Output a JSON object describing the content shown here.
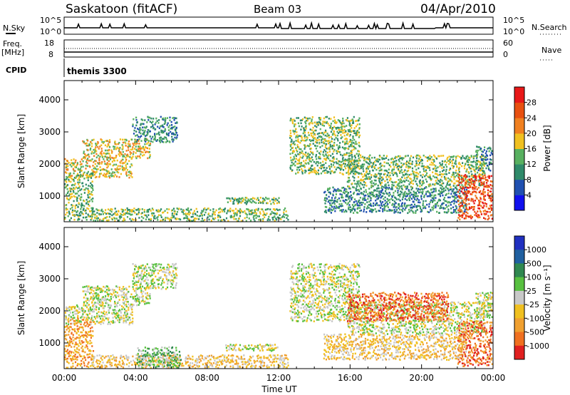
{
  "header": {
    "station": "Saskatoon (fitACF)",
    "beam": "Beam 03",
    "date": "04/Apr/2010"
  },
  "top_panel": {
    "left_label": "N.Sky",
    "right_label": "N.Search",
    "left_ticks": [
      "10^5",
      "10^0"
    ],
    "right_ticks": [
      "10^5",
      "10^0"
    ]
  },
  "freq_panel": {
    "label_line1": "Freq.",
    "label_line2": "[MHz]",
    "left_ticks": [
      "18",
      "8"
    ],
    "right_ticks": [
      "60",
      "0"
    ],
    "right_label": "Nave"
  },
  "cpid": {
    "label": "CPID",
    "value": "themis 3300"
  },
  "chart_data": [
    {
      "type": "heatmap",
      "name": "power",
      "xlabel": "",
      "ylabel": "Slant Range [km]",
      "xlim": [
        0,
        24
      ],
      "ylim": [
        200,
        4600
      ],
      "yticks": [
        "1000",
        "2000",
        "3000",
        "4000"
      ],
      "colorbar": {
        "label": "Power [dB]",
        "ticks": [
          "4",
          "8",
          "12",
          "16",
          "20",
          "24",
          "28"
        ],
        "colors": [
          "#1010ee",
          "#2050b0",
          "#2f8a6a",
          "#58b060",
          "#f0c020",
          "#f08020",
          "#e85010",
          "#e81818"
        ]
      },
      "regions": [
        {
          "t0": 0.0,
          "t1": 3.8,
          "r0": 1600,
          "r1": 2200,
          "level": 4
        },
        {
          "t0": 1.0,
          "t1": 4.8,
          "r0": 2200,
          "r1": 2800,
          "level": 4
        },
        {
          "t0": 3.8,
          "t1": 6.3,
          "r0": 2700,
          "r1": 3500,
          "level": 2
        },
        {
          "t0": 0.0,
          "t1": 1.6,
          "r0": 250,
          "r1": 1800,
          "level": 3
        },
        {
          "t0": 1.5,
          "t1": 12.5,
          "r0": 200,
          "r1": 650,
          "level": 3
        },
        {
          "t0": 9.0,
          "t1": 12.0,
          "r0": 780,
          "r1": 980,
          "level": 3
        },
        {
          "t0": 12.6,
          "t1": 16.5,
          "r0": 1700,
          "r1": 3500,
          "level": 3
        },
        {
          "t0": 15.8,
          "t1": 23.5,
          "r0": 1300,
          "r1": 2300,
          "level": 3
        },
        {
          "t0": 14.5,
          "t1": 22.5,
          "r0": 500,
          "r1": 1300,
          "level": 2
        },
        {
          "t0": 22.0,
          "t1": 24.0,
          "r0": 300,
          "r1": 1700,
          "level": 6
        },
        {
          "t0": 23.0,
          "t1": 24.0,
          "r0": 1800,
          "r1": 2600,
          "level": 2
        }
      ]
    },
    {
      "type": "heatmap",
      "name": "velocity",
      "xlabel": "Time UT",
      "ylabel": "Slant Range [km]",
      "xlim": [
        0,
        24
      ],
      "ylim": [
        200,
        4600
      ],
      "xticks": [
        "00:00",
        "04:00",
        "08:00",
        "12:00",
        "16:00",
        "20:00",
        "00:00"
      ],
      "yticks": [
        "1000",
        "2000",
        "3000",
        "4000"
      ],
      "colorbar": {
        "label": "Velocity [m s⁻¹]",
        "ticks": [
          "1000",
          "500",
          "100",
          "25",
          "-25",
          "-100",
          "-500",
          "-1000"
        ],
        "colors": [
          "#2030c0",
          "#2060a0",
          "#308850",
          "#58c040",
          "#c8c8c8",
          "#f0c020",
          "#f0a030",
          "#f07020",
          "#e02020"
        ]
      },
      "regions": [
        {
          "t0": 0.0,
          "t1": 3.8,
          "r0": 1600,
          "r1": 2200,
          "level": 4
        },
        {
          "t0": 1.0,
          "t1": 4.8,
          "r0": 2200,
          "r1": 2800,
          "level": 4
        },
        {
          "t0": 3.8,
          "t1": 6.3,
          "r0": 2700,
          "r1": 3500,
          "level": 4
        },
        {
          "t0": 0.0,
          "t1": 1.6,
          "r0": 250,
          "r1": 1800,
          "level": 6
        },
        {
          "t0": 1.5,
          "t1": 12.5,
          "r0": 200,
          "r1": 650,
          "level": 5
        },
        {
          "t0": 4.0,
          "t1": 6.5,
          "r0": 250,
          "r1": 900,
          "level": 3
        },
        {
          "t0": 9.0,
          "t1": 12.0,
          "r0": 780,
          "r1": 980,
          "level": 4
        },
        {
          "t0": 12.6,
          "t1": 16.5,
          "r0": 1700,
          "r1": 3500,
          "level": 4
        },
        {
          "t0": 15.8,
          "t1": 23.5,
          "r0": 1300,
          "r1": 2300,
          "level": 4
        },
        {
          "t0": 15.8,
          "t1": 21.5,
          "r0": 1700,
          "r1": 2600,
          "level": 7
        },
        {
          "t0": 14.5,
          "t1": 22.5,
          "r0": 500,
          "r1": 1300,
          "level": 5
        },
        {
          "t0": 22.0,
          "t1": 24.0,
          "r0": 300,
          "r1": 1700,
          "level": 7
        },
        {
          "t0": 23.0,
          "t1": 24.0,
          "r0": 1800,
          "r1": 2600,
          "level": 4
        }
      ]
    }
  ]
}
